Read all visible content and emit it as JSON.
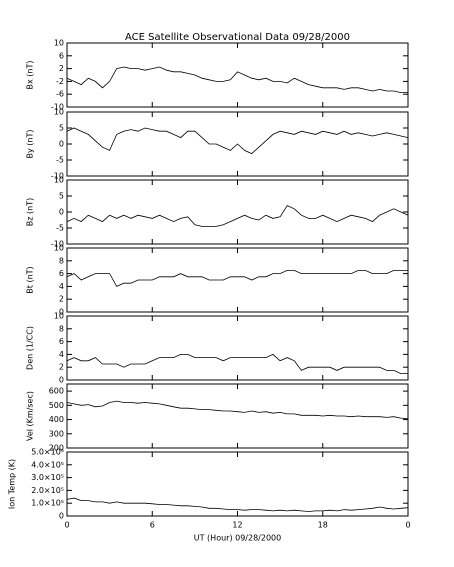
{
  "chart_data": [
    {
      "type": "line",
      "title": "ACE Satellite Observational Data   09/28/2000",
      "ylabel": "Bx (nT)",
      "color": "#000000",
      "xlim": [
        0,
        24
      ],
      "ylim": [
        -10,
        10
      ],
      "yticks": [
        -10,
        -6,
        -2,
        2,
        6,
        10
      ],
      "x": [
        0,
        0.5,
        1,
        1.5,
        2,
        2.5,
        3,
        3.5,
        4,
        4.5,
        5,
        5.5,
        6,
        6.5,
        7,
        7.5,
        8,
        8.5,
        9,
        9.5,
        10,
        10.5,
        11,
        11.5,
        12,
        12.5,
        13,
        13.5,
        14,
        14.5,
        15,
        15.5,
        16,
        16.5,
        17,
        17.5,
        18,
        18.5,
        19,
        19.5,
        20,
        20.5,
        21,
        21.5,
        22,
        22.5,
        23,
        23.5,
        24
      ],
      "values": [
        -1,
        -2,
        -3,
        -1,
        -2,
        -4,
        -2,
        2,
        2.5,
        2,
        2,
        1.5,
        2,
        2.5,
        1.5,
        1,
        1,
        0.5,
        0,
        -1,
        -1.5,
        -2,
        -2,
        -1.5,
        1,
        0,
        -1,
        -1.5,
        -1,
        -2,
        -2,
        -2.5,
        -1,
        -2,
        -3,
        -3.5,
        -4,
        -4,
        -4,
        -4.5,
        -4,
        -4,
        -4.5,
        -5,
        -4.5,
        -5,
        -5,
        -5.5,
        -5.5
      ]
    },
    {
      "type": "line",
      "ylabel": "By (nT)",
      "color": "#000000",
      "xlim": [
        0,
        24
      ],
      "ylim": [
        -10,
        10
      ],
      "yticks": [
        -10,
        -5,
        0,
        5,
        10
      ],
      "x": [
        0,
        0.5,
        1,
        1.5,
        2,
        2.5,
        3,
        3.5,
        4,
        4.5,
        5,
        5.5,
        6,
        6.5,
        7,
        7.5,
        8,
        8.5,
        9,
        9.5,
        10,
        10.5,
        11,
        11.5,
        12,
        12.5,
        13,
        13.5,
        14,
        14.5,
        15,
        15.5,
        16,
        16.5,
        17,
        17.5,
        18,
        18.5,
        19,
        19.5,
        20,
        20.5,
        21,
        21.5,
        22,
        22.5,
        23,
        23.5,
        24
      ],
      "values": [
        4,
        5,
        4,
        3,
        1,
        -1,
        -2,
        3,
        4,
        4.5,
        4,
        5,
        4.5,
        4,
        4,
        3,
        2,
        4,
        4,
        2,
        0,
        0,
        -1,
        -2,
        0,
        -2,
        -3,
        -1,
        1,
        3,
        4,
        3.5,
        3,
        4,
        3.5,
        3,
        4,
        3.5,
        3,
        4,
        3,
        3.5,
        3,
        2.5,
        3,
        3.5,
        3,
        2.5,
        2
      ]
    },
    {
      "type": "line",
      "ylabel": "Bz (nT)",
      "color": "#000000",
      "xlim": [
        0,
        24
      ],
      "ylim": [
        -10,
        10
      ],
      "yticks": [
        -10,
        -5,
        0,
        5,
        10
      ],
      "x": [
        0,
        0.5,
        1,
        1.5,
        2,
        2.5,
        3,
        3.5,
        4,
        4.5,
        5,
        5.5,
        6,
        6.5,
        7,
        7.5,
        8,
        8.5,
        9,
        9.5,
        10,
        10.5,
        11,
        11.5,
        12,
        12.5,
        13,
        13.5,
        14,
        14.5,
        15,
        15.5,
        16,
        16.5,
        17,
        17.5,
        18,
        18.5,
        19,
        19.5,
        20,
        20.5,
        21,
        21.5,
        22,
        22.5,
        23,
        23.5,
        24
      ],
      "values": [
        -3,
        -2,
        -3,
        -1,
        -2,
        -3,
        -1,
        -2,
        -1,
        -2,
        -1,
        -1.5,
        -2,
        -1,
        -2,
        -3,
        -2,
        -1.5,
        -4,
        -4.5,
        -4.5,
        -4.5,
        -4,
        -3,
        -2,
        -1,
        -2,
        -2.5,
        -1,
        -2,
        -1.5,
        2,
        1,
        -1,
        -2,
        -2,
        -1,
        -2,
        -3,
        -2,
        -1,
        -1.5,
        -2,
        -3,
        -1,
        0,
        1,
        0,
        -1
      ]
    },
    {
      "type": "line",
      "ylabel": "Bt (nT)",
      "color": "#000000",
      "xlim": [
        0,
        24
      ],
      "ylim": [
        0,
        10
      ],
      "yticks": [
        0,
        2,
        4,
        6,
        8,
        10
      ],
      "x": [
        0,
        0.5,
        1,
        1.5,
        2,
        2.5,
        3,
        3.5,
        4,
        4.5,
        5,
        5.5,
        6,
        6.5,
        7,
        7.5,
        8,
        8.5,
        9,
        9.5,
        10,
        10.5,
        11,
        11.5,
        12,
        12.5,
        13,
        13.5,
        14,
        14.5,
        15,
        15.5,
        16,
        16.5,
        17,
        17.5,
        18,
        18.5,
        19,
        19.5,
        20,
        20.5,
        21,
        21.5,
        22,
        22.5,
        23,
        23.5,
        24
      ],
      "values": [
        5.5,
        6,
        5,
        5.5,
        6,
        6,
        6,
        4,
        4.5,
        4.5,
        5,
        5,
        5,
        5.5,
        5.5,
        5.5,
        6,
        5.5,
        5.5,
        5.5,
        5,
        5,
        5,
        5.5,
        5.5,
        5.5,
        5,
        5.5,
        5.5,
        6,
        6,
        6.5,
        6.5,
        6,
        6,
        6,
        6,
        6,
        6,
        6,
        6,
        6.5,
        6.5,
        6,
        6,
        6,
        6.5,
        6.5,
        6.5
      ]
    },
    {
      "type": "line",
      "ylabel": "Den (1/CC)",
      "color": "#000000",
      "xlim": [
        0,
        24
      ],
      "ylim": [
        0,
        10
      ],
      "yticks": [
        0,
        2,
        4,
        6,
        8,
        10
      ],
      "x": [
        0,
        0.5,
        1,
        1.5,
        2,
        2.5,
        3,
        3.5,
        4,
        4.5,
        5,
        5.5,
        6,
        6.5,
        7,
        7.5,
        8,
        8.5,
        9,
        9.5,
        10,
        10.5,
        11,
        11.5,
        12,
        12.5,
        13,
        13.5,
        14,
        14.5,
        15,
        15.5,
        16,
        16.5,
        17,
        17.5,
        18,
        18.5,
        19,
        19.5,
        20,
        20.5,
        21,
        21.5,
        22,
        22.5,
        23,
        23.5,
        24
      ],
      "values": [
        3,
        3.5,
        3,
        3,
        3.5,
        2.5,
        2.5,
        2.5,
        2,
        2.5,
        2.5,
        2.5,
        3,
        3.5,
        3.5,
        3.5,
        4,
        4,
        3.5,
        3.5,
        3.5,
        3.5,
        3,
        3.5,
        3.5,
        3.5,
        3.5,
        3.5,
        3.5,
        4,
        3,
        3.5,
        3,
        1.5,
        2,
        2,
        2,
        2,
        1.5,
        2,
        2,
        2,
        2,
        2,
        2,
        1.5,
        1.5,
        1,
        1
      ]
    },
    {
      "type": "line",
      "ylabel": "Vel (Km/sec)",
      "color": "#000000",
      "xlim": [
        0,
        24
      ],
      "ylim": [
        200,
        650
      ],
      "yticks": [
        200,
        300,
        400,
        500,
        600
      ],
      "x": [
        0,
        0.5,
        1,
        1.5,
        2,
        2.5,
        3,
        3.5,
        4,
        4.5,
        5,
        5.5,
        6,
        6.5,
        7,
        7.5,
        8,
        8.5,
        9,
        9.5,
        10,
        10.5,
        11,
        11.5,
        12,
        12.5,
        13,
        13.5,
        14,
        14.5,
        15,
        15.5,
        16,
        16.5,
        17,
        17.5,
        18,
        18.5,
        19,
        19.5,
        20,
        20.5,
        21,
        21.5,
        22,
        22.5,
        23,
        23.5,
        24
      ],
      "values": [
        520,
        510,
        500,
        505,
        490,
        495,
        520,
        530,
        520,
        520,
        515,
        520,
        515,
        510,
        500,
        490,
        480,
        480,
        475,
        470,
        470,
        465,
        460,
        460,
        455,
        450,
        460,
        450,
        455,
        445,
        450,
        440,
        440,
        430,
        430,
        430,
        425,
        430,
        425,
        425,
        420,
        425,
        420,
        420,
        420,
        415,
        420,
        410,
        405
      ]
    },
    {
      "type": "line",
      "ylabel": "Ion Temp (K)",
      "xlabel": "UT (Hour)  09/28/2000",
      "color": "#000000",
      "xlim": [
        0,
        24
      ],
      "xticks": [
        0,
        6,
        12,
        18,
        {
          "value": 24,
          "label": "0"
        }
      ],
      "ylim": [
        0,
        500000
      ],
      "yticks": [
        0,
        {
          "value": 100000,
          "label": "1.0×10⁵"
        },
        {
          "value": 200000,
          "label": "2.0×10⁵"
        },
        {
          "value": 300000,
          "label": "3.0×10⁵"
        },
        {
          "value": 400000,
          "label": "4.0×10⁵"
        },
        {
          "value": 500000,
          "label": "5.0×10⁵"
        }
      ],
      "x": [
        0,
        0.5,
        1,
        1.5,
        2,
        2.5,
        3,
        3.5,
        4,
        4.5,
        5,
        5.5,
        6,
        6.5,
        7,
        7.5,
        8,
        8.5,
        9,
        9.5,
        10,
        10.5,
        11,
        11.5,
        12,
        12.5,
        13,
        13.5,
        14,
        14.5,
        15,
        15.5,
        16,
        16.5,
        17,
        17.5,
        18,
        18.5,
        19,
        19.5,
        20,
        20.5,
        21,
        21.5,
        22,
        22.5,
        23,
        23.5,
        24
      ],
      "values": [
        130000,
        140000,
        120000,
        120000,
        110000,
        110000,
        100000,
        110000,
        100000,
        100000,
        100000,
        100000,
        95000,
        90000,
        90000,
        85000,
        80000,
        80000,
        75000,
        70000,
        60000,
        60000,
        55000,
        50000,
        50000,
        45000,
        50000,
        50000,
        45000,
        40000,
        45000,
        40000,
        45000,
        40000,
        35000,
        40000,
        40000,
        45000,
        40000,
        50000,
        45000,
        50000,
        55000,
        60000,
        70000,
        60000,
        55000,
        60000,
        65000
      ]
    }
  ]
}
